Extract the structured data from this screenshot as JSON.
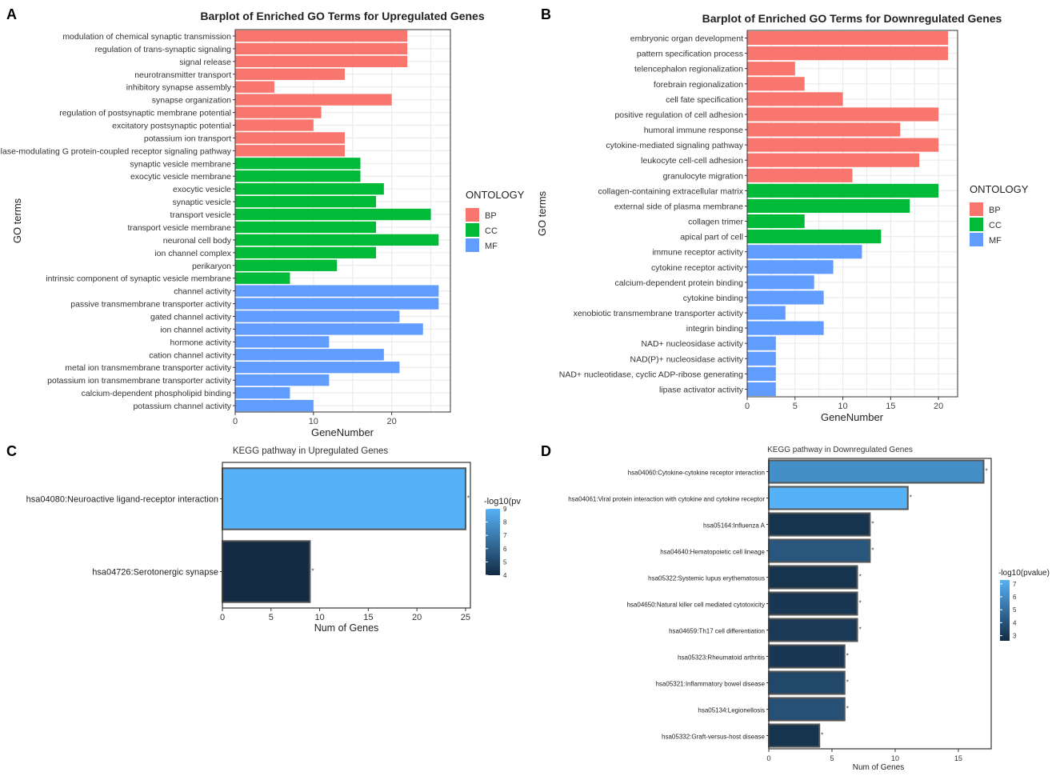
{
  "panels": {
    "a": "A",
    "b": "B",
    "c": "C",
    "d": "D"
  },
  "chart_data": [
    {
      "id": "A",
      "type": "bar",
      "orientation": "horizontal",
      "title": "Barplot of Enriched GO Terms for Upregulated Genes",
      "xlabel": "GeneNumber",
      "ylabel": "GO terms",
      "xlim": [
        0,
        27.5
      ],
      "xticks": [
        0,
        10,
        20
      ],
      "legend": {
        "title": "ONTOLOGY",
        "position": "right",
        "entries": [
          {
            "name": "BP",
            "color": "#F8766D"
          },
          {
            "name": "CC",
            "color": "#00BA38"
          },
          {
            "name": "MF",
            "color": "#619CFF"
          }
        ]
      },
      "categories": [
        "modulation of chemical synaptic transmission",
        "regulation of trans-synaptic signaling",
        "signal release",
        "neurotransmitter transport",
        "inhibitory synapse assembly",
        "synapse organization",
        "regulation of postsynaptic membrane potential",
        "excitatory postsynaptic potential",
        "potassium ion transport",
        "adenylate cyclase-modulating G protein-coupled receptor signaling pathway",
        "synaptic vesicle membrane",
        "exocytic vesicle membrane",
        "exocytic vesicle",
        "synaptic vesicle",
        "transport vesicle",
        "transport vesicle membrane",
        "neuronal cell body",
        "ion channel complex",
        "perikaryon",
        "intrinsic component of synaptic vesicle membrane",
        "channel activity",
        "passive transmembrane transporter activity",
        "gated channel activity",
        "ion channel activity",
        "hormone activity",
        "cation channel activity",
        "metal ion transmembrane transporter activity",
        "potassium ion transmembrane transporter activity",
        "calcium-dependent phospholipid binding",
        "potassium channel activity"
      ],
      "values": [
        22,
        22,
        22,
        14,
        5,
        20,
        11,
        10,
        14,
        14,
        16,
        16,
        19,
        18,
        25,
        18,
        26,
        18,
        13,
        7,
        26,
        26,
        21,
        24,
        12,
        19,
        21,
        12,
        7,
        10
      ],
      "groups": [
        "BP",
        "BP",
        "BP",
        "BP",
        "BP",
        "BP",
        "BP",
        "BP",
        "BP",
        "BP",
        "CC",
        "CC",
        "CC",
        "CC",
        "CC",
        "CC",
        "CC",
        "CC",
        "CC",
        "CC",
        "MF",
        "MF",
        "MF",
        "MF",
        "MF",
        "MF",
        "MF",
        "MF",
        "MF",
        "MF"
      ]
    },
    {
      "id": "B",
      "type": "bar",
      "orientation": "horizontal",
      "title": "Barplot of Enriched GO Terms for Downregulated Genes",
      "xlabel": "GeneNumber",
      "ylabel": "GO terms",
      "xlim": [
        0,
        22
      ],
      "xticks": [
        0,
        5,
        10,
        15,
        20
      ],
      "legend": {
        "title": "ONTOLOGY",
        "position": "right",
        "entries": [
          {
            "name": "BP",
            "color": "#F8766D"
          },
          {
            "name": "CC",
            "color": "#00BA38"
          },
          {
            "name": "MF",
            "color": "#619CFF"
          }
        ]
      },
      "categories": [
        "embryonic organ development",
        "pattern specification process",
        "telencephalon regionalization",
        "forebrain regionalization",
        "cell fate specification",
        "positive regulation of cell adhesion",
        "humoral immune response",
        "cytokine-mediated signaling pathway",
        "leukocyte cell-cell adhesion",
        "granulocyte migration",
        "collagen-containing extracellular matrix",
        "external side of plasma membrane",
        "collagen trimer",
        "apical part of cell",
        "immune receptor activity",
        "cytokine receptor activity",
        "calcium-dependent protein binding",
        "cytokine binding",
        "xenobiotic transmembrane transporter activity",
        "integrin binding",
        "NAD+ nucleosidase activity",
        "NAD(P)+ nucleosidase activity",
        "NAD+ nucleotidase, cyclic ADP-ribose generating",
        "lipase activator activity"
      ],
      "values": [
        21,
        21,
        5,
        6,
        10,
        20,
        16,
        20,
        18,
        11,
        20,
        17,
        6,
        14,
        12,
        9,
        7,
        8,
        4,
        8,
        3,
        3,
        3,
        3
      ],
      "groups": [
        "BP",
        "BP",
        "BP",
        "BP",
        "BP",
        "BP",
        "BP",
        "BP",
        "BP",
        "BP",
        "CC",
        "CC",
        "CC",
        "CC",
        "MF",
        "MF",
        "MF",
        "MF",
        "MF",
        "MF",
        "MF",
        "MF",
        "MF",
        "MF"
      ]
    },
    {
      "id": "C",
      "type": "bar",
      "orientation": "horizontal",
      "title": "KEGG pathway in Upregulated Genes",
      "xlabel": "Num of Genes",
      "ylabel": "",
      "xlim": [
        0,
        25.5
      ],
      "xticks": [
        0,
        5,
        10,
        15,
        20,
        25
      ],
      "colorbar": {
        "title": "-log10(pv",
        "range": [
          4,
          9
        ],
        "ticks": [
          "9",
          "8",
          "7",
          "6",
          "5",
          "4"
        ],
        "low_color": "#132B43",
        "high_color": "#56B1F7"
      },
      "categories": [
        "hsa04080:Neuroactive ligand-receptor interaction",
        "hsa04726:Serotonergic synapse"
      ],
      "values": [
        25,
        9
      ],
      "neg_log10_p": [
        9.4,
        4.0
      ]
    },
    {
      "id": "D",
      "type": "bar",
      "orientation": "horizontal",
      "title": "KEGG pathway in Downregulated Genes",
      "xlabel": "Num of Genes",
      "ylabel": "",
      "xlim": [
        0,
        17.6
      ],
      "xticks": [
        0,
        5,
        10,
        15
      ],
      "colorbar": {
        "title": "-log10(pvalue)",
        "range": [
          2.6,
          7.3
        ],
        "ticks": [
          "7",
          "6",
          "5",
          "4",
          "3"
        ],
        "low_color": "#132B43",
        "high_color": "#56B1F7"
      },
      "categories": [
        "hsa04060:Cytokine-cytokine receptor interaction",
        "hsa04061:Viral protein interaction with cytokine and cytokine receptor",
        "hsa05164:Influenza A",
        "hsa04640:Hematopoietic cell lineage",
        "hsa05322:Systemic lupus erythematosus",
        "hsa04650:Natural killer cell mediated cytotoxicity",
        "hsa04659:Th17 cell differentiation",
        "hsa05323:Rheumatoid arthritis",
        "hsa05321:Inflammatory bowel disease",
        "hsa05134:Legionellosis",
        "hsa05332:Graft-versus-host disease"
      ],
      "values": [
        17,
        11,
        8,
        8,
        7,
        7,
        7,
        6,
        6,
        6,
        4
      ],
      "neg_log10_p": [
        6.1,
        7.3,
        2.9,
        4.1,
        2.9,
        3.0,
        3.1,
        3.0,
        3.6,
        3.9,
        2.9
      ]
    }
  ]
}
